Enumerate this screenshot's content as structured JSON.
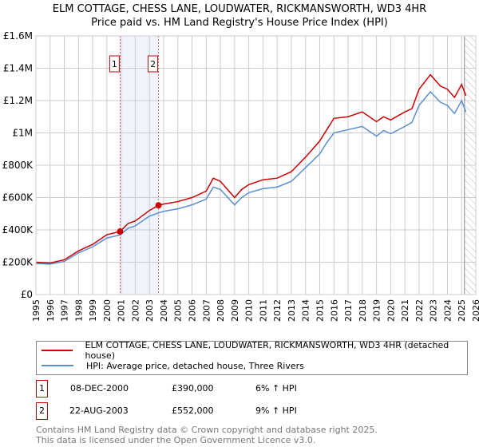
{
  "title_line1": "ELM COTTAGE, CHESS LANE, LOUDWATER, RICKMANSWORTH, WD3 4HR",
  "title_line2": "Price paid vs. HM Land Registry's House Price Index (HPI)",
  "chart_data": {
    "type": "line",
    "xlim": [
      1995,
      2026
    ],
    "ylim": [
      0,
      1600000
    ],
    "yticks": [
      0,
      200000,
      400000,
      600000,
      800000,
      1000000,
      1200000,
      1400000,
      1600000
    ],
    "ytick_labels": [
      "£0",
      "£200K",
      "£400K",
      "£600K",
      "£800K",
      "£1M",
      "£1.2M",
      "£1.4M",
      "£1.6M"
    ],
    "xticks": [
      1995,
      1996,
      1997,
      1998,
      1999,
      2000,
      2001,
      2002,
      2003,
      2004,
      2005,
      2006,
      2007,
      2008,
      2009,
      2010,
      2011,
      2012,
      2013,
      2014,
      2015,
      2016,
      2017,
      2018,
      2019,
      2020,
      2021,
      2022,
      2023,
      2024,
      2025,
      2026
    ],
    "grid": true,
    "series": [
      {
        "name": "ELM COTTAGE, CHESS LANE, LOUDWATER, RICKMANSWORTH, WD3 4HR (detached house)",
        "color": "#cc0000",
        "x": [
          1995,
          1996,
          1997,
          1998,
          1999,
          2000,
          2000.93,
          2001.5,
          2002,
          2003,
          2003.64,
          2004,
          2005,
          2006,
          2007,
          2007.5,
          2008,
          2009,
          2009.5,
          2010,
          2011,
          2012,
          2013,
          2014,
          2015,
          2015.5,
          2016,
          2017,
          2018,
          2019,
          2019.5,
          2020,
          2021,
          2021.5,
          2022,
          2022.8,
          2023.5,
          2024,
          2024.5,
          2025,
          2025.3
        ],
        "y": [
          200000,
          195000,
          215000,
          270000,
          310000,
          370000,
          390000,
          440000,
          455000,
          520000,
          552000,
          560000,
          575000,
          600000,
          640000,
          720000,
          700000,
          600000,
          650000,
          680000,
          710000,
          720000,
          760000,
          850000,
          950000,
          1020000,
          1090000,
          1100000,
          1130000,
          1070000,
          1100000,
          1080000,
          1130000,
          1150000,
          1270000,
          1360000,
          1290000,
          1270000,
          1220000,
          1300000,
          1230000
        ]
      },
      {
        "name": "HPI: Average price, detached house, Three Rivers",
        "color": "#5b8fd0",
        "x": [
          1995,
          1996,
          1997,
          1998,
          1999,
          2000,
          2000.93,
          2001.5,
          2002,
          2003,
          2003.64,
          2004,
          2005,
          2006,
          2007,
          2007.5,
          2008,
          2009,
          2009.5,
          2010,
          2011,
          2012,
          2013,
          2014,
          2015,
          2015.5,
          2016,
          2017,
          2018,
          2019,
          2019.5,
          2020,
          2021,
          2021.5,
          2022,
          2022.8,
          2023.5,
          2024,
          2024.5,
          2025,
          2025.3
        ],
        "y": [
          192000,
          188000,
          205000,
          258000,
          295000,
          350000,
          368000,
          410000,
          425000,
          485000,
          505000,
          515000,
          530000,
          555000,
          590000,
          665000,
          650000,
          555000,
          600000,
          630000,
          655000,
          665000,
          700000,
          785000,
          870000,
          940000,
          1000000,
          1020000,
          1040000,
          980000,
          1015000,
          995000,
          1040000,
          1065000,
          1170000,
          1255000,
          1190000,
          1170000,
          1120000,
          1200000,
          1130000
        ]
      }
    ],
    "annotations": [
      {
        "label": "1",
        "x": 2000.93,
        "y": 390000
      },
      {
        "label": "2",
        "x": 2003.64,
        "y": 552000
      }
    ],
    "forecast_start": 2025.2
  },
  "legend": {
    "red": "ELM COTTAGE, CHESS LANE, LOUDWATER, RICKMANSWORTH, WD3 4HR (detached house)",
    "blue": "HPI: Average price, detached house, Three Rivers"
  },
  "sales": [
    {
      "num": "1",
      "date": "08-DEC-2000",
      "price": "£390,000",
      "hpi": "6% ↑ HPI"
    },
    {
      "num": "2",
      "date": "22-AUG-2003",
      "price": "£552,000",
      "hpi": "9% ↑ HPI"
    }
  ],
  "footer1": "Contains HM Land Registry data © Crown copyright and database right 2025.",
  "footer2": "This data is licensed under the Open Government Licence v3.0."
}
